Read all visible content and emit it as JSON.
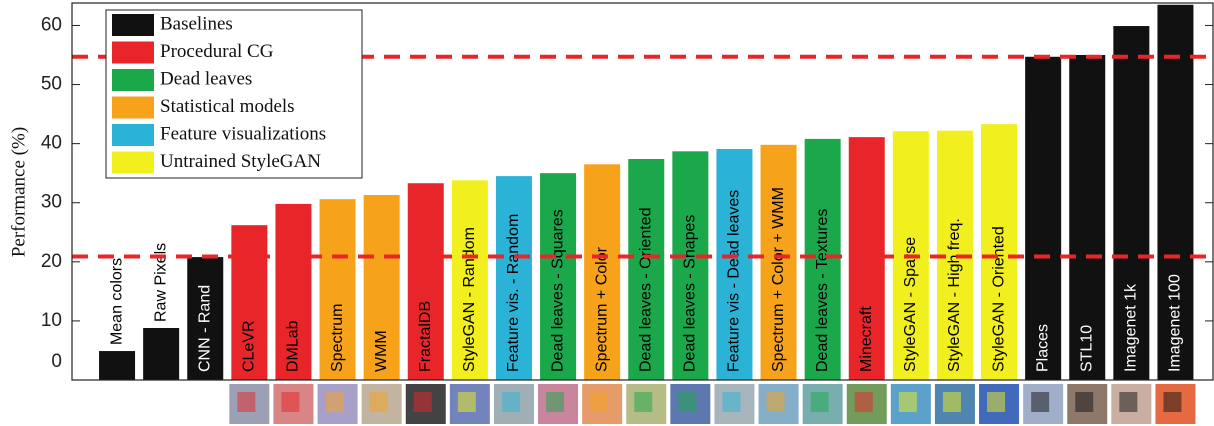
{
  "chart_data": {
    "type": "bar",
    "y_label": "Performance (%)",
    "categories": [
      "Mean colors",
      "Raw Pixels",
      "CNN - Rand",
      "CLeVR",
      "DMLab",
      "Spectrum",
      "WMM",
      "FractalDB",
      "StyleGAN - Random",
      "Feature vis. - Random",
      "Dead leaves - Squares",
      "Spectrum + Color",
      "Dead leaves - Oriented",
      "Dead leaves - Shapes",
      "Feature vis - Dead leaves",
      "Spectrum + Color + WMM",
      "Dead leaves - Textures",
      "Minecraft",
      "StyleGAN - Sparse",
      "StyleGAN - High freq.",
      "StyleGAN - Oriented",
      "Places",
      "STL10",
      "Imagenet 1k",
      "Imagenet 100"
    ],
    "values": [
      4.9,
      8.8,
      20.8,
      26.2,
      29.8,
      30.6,
      31.3,
      33.3,
      33.8,
      34.5,
      35.0,
      36.5,
      37.4,
      38.7,
      39.1,
      39.8,
      40.8,
      41.1,
      42.1,
      42.2,
      43.3,
      54.7,
      55.0,
      59.9,
      63.5
    ],
    "colors": [
      "#111111",
      "#111111",
      "#111111",
      "#e8262a",
      "#e8262a",
      "#f7a21b",
      "#f7a21b",
      "#e8262a",
      "#f2ef1e",
      "#2ab3d6",
      "#1ba84a",
      "#f7a21b",
      "#1ba84a",
      "#1ba84a",
      "#2ab3d6",
      "#f7a21b",
      "#1ba84a",
      "#e8262a",
      "#f2ef1e",
      "#f2ef1e",
      "#f2ef1e",
      "#111111",
      "#111111",
      "#111111",
      "#111111"
    ],
    "legend": [
      {
        "name": "Baselines",
        "color": "#111111"
      },
      {
        "name": "Procedural CG",
        "color": "#e8262a"
      },
      {
        "name": "Dead leaves",
        "color": "#1ba84a"
      },
      {
        "name": "Statistical models",
        "color": "#f7a21b"
      },
      {
        "name": "Feature visualizations",
        "color": "#2ab3d6"
      },
      {
        "name": "Untrained StyleGAN",
        "color": "#f2ef1e"
      }
    ],
    "reference_lines": {
      "values": [
        20.9,
        54.7
      ],
      "color": "#e8262a"
    },
    "ylim": [
      0,
      63.8
    ],
    "yticks": [
      0,
      10,
      20,
      30,
      40,
      50,
      60
    ]
  }
}
